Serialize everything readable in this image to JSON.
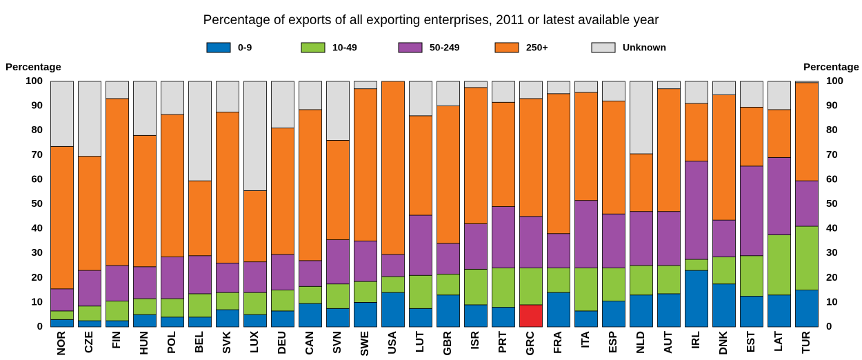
{
  "chart_data": {
    "type": "stacked_bar",
    "title": "Percentage of exports of all exporting enterprises, 2011 or latest available year",
    "y_label": "Percentage",
    "y2_label": "Percentage",
    "categories": [
      "NOR",
      "CZE",
      "FIN",
      "HUN",
      "POL",
      "BEL",
      "SVK",
      "LUX",
      "DEU",
      "CAN",
      "SVN",
      "SWE",
      "USA",
      "LUT",
      "GBR",
      "ISR",
      "PRT",
      "GRC",
      "FRA",
      "ITA",
      "ESP",
      "NLD",
      "AUT",
      "IRL",
      "DNK",
      "EST",
      "LAT",
      "TUR"
    ],
    "series": [
      {
        "name": "0-9",
        "color": "#0072bc",
        "colors": [
          "#0072bc",
          "#0072bc",
          "#0072bc",
          "#0072bc",
          "#0072bc",
          "#0072bc",
          "#0072bc",
          "#0072bc",
          "#0072bc",
          "#0072bc",
          "#0072bc",
          "#0072bc",
          "#0072bc",
          "#0072bc",
          "#0072bc",
          "#0072bc",
          "#0072bc",
          "#e8262a",
          "#0072bc",
          "#0072bc",
          "#0072bc",
          "#0072bc",
          "#0072bc",
          "#0072bc",
          "#0072bc",
          "#0072bc",
          "#0072bc",
          "#0072bc"
        ],
        "values": [
          3,
          2.5,
          2.5,
          5,
          4,
          4,
          7,
          5,
          6.5,
          9.5,
          7.5,
          10,
          14,
          7.5,
          13,
          9,
          8,
          9,
          14,
          6.5,
          10.5,
          13,
          13.5,
          23,
          17.5,
          12.5,
          13,
          15
        ]
      },
      {
        "name": "10-49",
        "color": "#8dc63f",
        "values": [
          3.5,
          6,
          8,
          6.5,
          7.5,
          9.5,
          7,
          9,
          8.5,
          7,
          10,
          8.5,
          6.5,
          13.5,
          8.5,
          14.5,
          16,
          15,
          10,
          17.5,
          13.5,
          12,
          11.5,
          4.5,
          11,
          16.5,
          24.5,
          26
        ]
      },
      {
        "name": "50-249",
        "color": "#9e4fa5",
        "values": [
          9,
          14.5,
          14.5,
          13,
          17,
          15.5,
          12,
          12.5,
          14.5,
          10.5,
          18,
          16.5,
          9,
          24.5,
          12.5,
          18.5,
          25,
          21,
          14,
          27.5,
          22,
          22,
          22,
          40,
          15,
          36.5,
          31.5,
          18.5
        ]
      },
      {
        "name": "250+",
        "color": "#f47b20",
        "values": [
          58,
          46.5,
          68,
          53.5,
          58,
          30.5,
          61.5,
          29,
          51.5,
          61.5,
          40.5,
          62,
          70.5,
          40.5,
          56,
          55.5,
          42.5,
          48,
          57,
          44,
          46,
          23.5,
          50,
          23.5,
          51,
          24,
          19.5,
          40
        ]
      },
      {
        "name": "Unknown",
        "color": "#dcdcdc",
        "values": [
          26.5,
          30.5,
          7,
          22,
          13.5,
          40.5,
          12.5,
          44.5,
          19,
          11.5,
          24,
          3,
          0,
          14,
          10,
          2.5,
          8.5,
          7,
          5,
          4.5,
          8,
          29.5,
          3,
          9,
          5.5,
          10.5,
          11.5,
          0.5
        ]
      }
    ],
    "ylim": [
      0,
      100
    ],
    "yticks": [
      0,
      10,
      20,
      30,
      40,
      50,
      60,
      70,
      80,
      90,
      100
    ],
    "y2lim": [
      0,
      100
    ],
    "y2ticks": [
      0,
      10,
      20,
      30,
      40,
      50,
      60,
      70,
      80,
      90,
      100
    ]
  }
}
